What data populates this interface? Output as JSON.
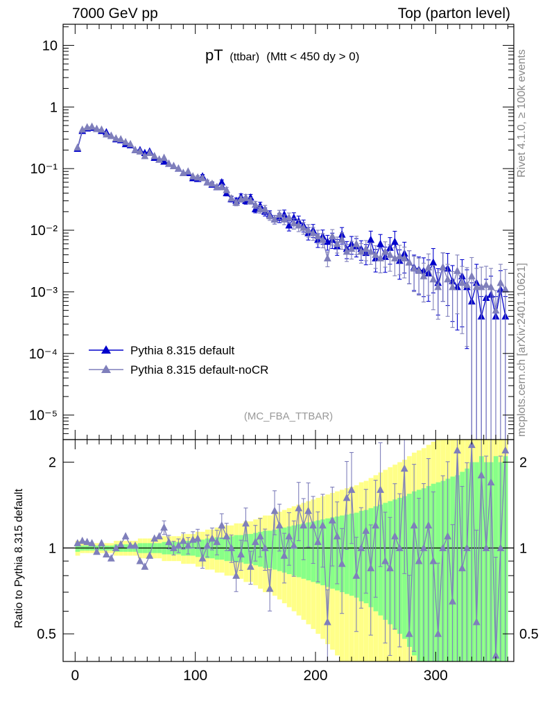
{
  "header": {
    "left": "7000 GeV pp",
    "right": "Top (parton level)"
  },
  "side": {
    "rivet": "Rivet 4.1.0, ≥ 100k events",
    "mcplots": "mcplots.cern.ch [arXiv:2401.10621]"
  },
  "colors": {
    "default": "#0000cc",
    "nocr": "#7f7fbb",
    "band_yellow": "#ffff88",
    "band_green": "#88ff88"
  },
  "chart_data": [
    {
      "type": "line",
      "panel": "main",
      "title_main": "pT",
      "title_sub": "(ttbar)",
      "title_cut": "(Mtt < 450 dy > 0)",
      "analysis_tag": "(MC_FBA_TTBAR)",
      "yscale": "log",
      "xlim": [
        -10,
        365
      ],
      "ylim": [
        4e-06,
        22
      ],
      "yticks": [
        {
          "v": 10,
          "label": "10"
        },
        {
          "v": 1,
          "label": "1"
        },
        {
          "v": 0.1,
          "label": "10⁻¹"
        },
        {
          "v": 0.01,
          "label": "10⁻²"
        },
        {
          "v": 0.001,
          "label": "10⁻³"
        },
        {
          "v": 0.0001,
          "label": "10⁻⁴"
        },
        {
          "v": 1e-05,
          "label": "10⁻⁵"
        }
      ],
      "legend_position": "lower-left",
      "bin_width": 3.6,
      "series": [
        {
          "name": "Pythia 8.315 default",
          "marker": "triangle",
          "x": [
            2,
            6,
            10,
            14,
            18,
            22,
            26,
            30,
            34,
            38,
            42,
            46,
            50,
            54,
            58,
            62,
            66,
            70,
            74,
            78,
            82,
            86,
            90,
            94,
            98,
            102,
            106,
            110,
            114,
            118,
            122,
            126,
            130,
            134,
            138,
            142,
            146,
            150,
            154,
            158,
            162,
            166,
            170,
            174,
            178,
            182,
            186,
            190,
            194,
            198,
            202,
            206,
            210,
            214,
            218,
            222,
            226,
            230,
            234,
            238,
            242,
            246,
            250,
            254,
            258,
            262,
            266,
            270,
            274,
            278,
            282,
            286,
            290,
            294,
            298,
            302,
            306,
            310,
            314,
            318,
            322,
            326,
            330,
            334,
            338,
            342,
            346,
            350,
            354,
            358
          ],
          "y": [
            0.21,
            0.41,
            0.45,
            0.46,
            0.44,
            0.41,
            0.39,
            0.34,
            0.3,
            0.29,
            0.25,
            0.24,
            0.2,
            0.2,
            0.18,
            0.19,
            0.15,
            0.14,
            0.13,
            0.12,
            0.11,
            0.1,
            0.085,
            0.085,
            0.07,
            0.068,
            0.075,
            0.06,
            0.055,
            0.05,
            0.06,
            0.04,
            0.032,
            0.03,
            0.035,
            0.03,
            0.034,
            0.022,
            0.025,
            0.02,
            0.018,
            0.015,
            0.016,
            0.018,
            0.012,
            0.016,
            0.014,
            0.012,
            0.009,
            0.01,
            0.007,
            0.008,
            0.0065,
            0.007,
            0.0055,
            0.0085,
            0.005,
            0.006,
            0.0055,
            0.005,
            0.0043,
            0.007,
            0.0035,
            0.006,
            0.0037,
            0.0052,
            0.0065,
            0.0032,
            0.0042,
            0.003,
            0.0025,
            0.0023,
            0.0022,
            0.002,
            0.003,
            0.0014,
            0.0025,
            0.0024,
            0.0015,
            0.0012,
            0.0018,
            0.0012,
            0.0007,
            0.0014,
            0.0004,
            0.0008,
            0.0009,
            0.0004,
            0.0011,
            0.0004
          ],
          "err_rel": [
            0.03,
            0.02,
            0.02,
            0.02,
            0.02,
            0.02,
            0.02,
            0.02,
            0.03,
            0.03,
            0.03,
            0.03,
            0.03,
            0.04,
            0.04,
            0.04,
            0.04,
            0.04,
            0.05,
            0.05,
            0.05,
            0.05,
            0.06,
            0.06,
            0.06,
            0.07,
            0.07,
            0.08,
            0.08,
            0.09,
            0.09,
            0.1,
            0.1,
            0.11,
            0.11,
            0.12,
            0.12,
            0.13,
            0.14,
            0.15,
            0.15,
            0.16,
            0.17,
            0.18,
            0.19,
            0.2,
            0.21,
            0.22,
            0.23,
            0.24,
            0.25,
            0.26,
            0.27,
            0.28,
            0.29,
            0.3,
            0.31,
            0.32,
            0.33,
            0.35,
            0.36,
            0.38,
            0.4,
            0.42,
            0.44,
            0.46,
            0.48,
            0.5,
            0.52,
            0.55,
            0.58,
            0.6,
            0.62,
            0.65,
            0.68,
            0.7,
            0.72,
            0.75,
            0.78,
            0.8,
            0.85,
            0.9,
            1.0,
            1.0,
            1.1,
            1.0,
            1.0,
            1.1,
            1.0,
            1.1
          ]
        },
        {
          "name": "Pythia 8.315 default-noCR",
          "marker": "triangle",
          "x": [
            2,
            6,
            10,
            14,
            18,
            22,
            26,
            30,
            34,
            38,
            42,
            46,
            50,
            54,
            58,
            62,
            66,
            70,
            74,
            78,
            82,
            86,
            90,
            94,
            98,
            102,
            106,
            110,
            114,
            118,
            122,
            126,
            130,
            134,
            138,
            142,
            146,
            150,
            154,
            158,
            162,
            166,
            170,
            174,
            178,
            182,
            186,
            190,
            194,
            198,
            202,
            206,
            210,
            214,
            218,
            222,
            226,
            230,
            234,
            238,
            242,
            246,
            250,
            254,
            258,
            262,
            266,
            270,
            274,
            278,
            282,
            286,
            290,
            294,
            298,
            302,
            306,
            310,
            314,
            318,
            322,
            326,
            330,
            334,
            338,
            342,
            346,
            350,
            354,
            358
          ],
          "y": [
            0.22,
            0.43,
            0.47,
            0.48,
            0.44,
            0.43,
            0.36,
            0.34,
            0.31,
            0.3,
            0.27,
            0.25,
            0.2,
            0.19,
            0.16,
            0.18,
            0.16,
            0.14,
            0.15,
            0.12,
            0.11,
            0.1,
            0.085,
            0.09,
            0.075,
            0.072,
            0.07,
            0.06,
            0.057,
            0.05,
            0.05,
            0.045,
            0.033,
            0.028,
            0.032,
            0.034,
            0.03,
            0.026,
            0.022,
            0.022,
            0.017,
            0.015,
            0.018,
            0.015,
            0.016,
            0.013,
            0.012,
            0.011,
            0.01,
            0.009,
            0.008,
            0.007,
            0.0035,
            0.008,
            0.006,
            0.007,
            0.0045,
            0.005,
            0.006,
            0.0045,
            0.005,
            0.0045,
            0.004,
            0.0035,
            0.0045,
            0.004,
            0.0035,
            0.0038,
            0.0035,
            0.003,
            0.0024,
            0.0022,
            0.0018,
            0.0025,
            0.0016,
            0.0012,
            0.0025,
            0.0016,
            0.0012,
            0.0022,
            0.0014,
            0.0013,
            0.0018,
            0.0012,
            0.0012,
            0.0013,
            0.0012,
            0.0005,
            0.0014,
            0.0011
          ],
          "err_rel": [
            0.03,
            0.02,
            0.02,
            0.02,
            0.02,
            0.02,
            0.02,
            0.02,
            0.03,
            0.03,
            0.03,
            0.03,
            0.03,
            0.04,
            0.04,
            0.04,
            0.04,
            0.04,
            0.05,
            0.05,
            0.05,
            0.05,
            0.06,
            0.06,
            0.06,
            0.07,
            0.07,
            0.08,
            0.08,
            0.09,
            0.09,
            0.1,
            0.1,
            0.11,
            0.11,
            0.12,
            0.12,
            0.13,
            0.14,
            0.15,
            0.15,
            0.16,
            0.17,
            0.18,
            0.19,
            0.2,
            0.21,
            0.22,
            0.23,
            0.24,
            0.25,
            0.26,
            0.27,
            0.28,
            0.29,
            0.3,
            0.31,
            0.32,
            0.33,
            0.35,
            0.36,
            0.38,
            0.4,
            0.42,
            0.44,
            0.46,
            0.48,
            0.5,
            0.52,
            0.55,
            0.58,
            0.6,
            0.62,
            0.65,
            0.68,
            0.7,
            0.72,
            0.75,
            0.78,
            0.8,
            0.85,
            0.9,
            1.0,
            1.0,
            1.1,
            1.0,
            1.0,
            1.1,
            1.0,
            1.1
          ]
        }
      ]
    },
    {
      "type": "line",
      "panel": "ratio",
      "ylabel": "Ratio to Pythia 8.315 default",
      "yscale": "log",
      "ylim": [
        0.4,
        2.4
      ],
      "yticks": [
        {
          "v": 2,
          "label": "2"
        },
        {
          "v": 1,
          "label": "1"
        },
        {
          "v": 0.5,
          "label": "0.5"
        }
      ],
      "xlim": [
        -10,
        365
      ],
      "xticks": [
        {
          "v": 0,
          "label": "0"
        },
        {
          "v": 100,
          "label": "100"
        },
        {
          "v": 200,
          "label": "200"
        },
        {
          "v": 300,
          "label": "300"
        }
      ],
      "reference_line": 1,
      "bands": [
        {
          "name": "stat 2 sigma",
          "color": "#ffff88",
          "source": "default err_rel x2"
        },
        {
          "name": "stat 1 sigma",
          "color": "#88ff88",
          "source": "default err_rel x1"
        }
      ],
      "series": [
        {
          "name": "Pythia 8.315 default-noCR / Pythia 8.315 default",
          "x": [
            2,
            6,
            10,
            14,
            18,
            22,
            26,
            30,
            34,
            38,
            42,
            46,
            50,
            54,
            58,
            62,
            66,
            70,
            74,
            78,
            82,
            86,
            90,
            94,
            98,
            102,
            106,
            110,
            114,
            118,
            122,
            126,
            130,
            134,
            138,
            142,
            146,
            150,
            154,
            158,
            162,
            166,
            170,
            174,
            178,
            182,
            186,
            190,
            194,
            198,
            202,
            206,
            210,
            214,
            218,
            222,
            226,
            230,
            234,
            238,
            242,
            246,
            250,
            254,
            258,
            262,
            266,
            270,
            274,
            278,
            282,
            286,
            290,
            294,
            298,
            302,
            306,
            310,
            314,
            318,
            322,
            326,
            330,
            334,
            338,
            342,
            346,
            350,
            354,
            358
          ],
          "y": [
            1.04,
            1.06,
            1.05,
            1.04,
            0.97,
            1.04,
            0.95,
            0.92,
            1.0,
            1.03,
            1.1,
            1.02,
            1.02,
            0.9,
            0.86,
            0.94,
            1.08,
            1.1,
            1.18,
            1.05,
            1.0,
            1.02,
            1.06,
            1.02,
            1.07,
            1.08,
            0.92,
            1.02,
            1.08,
            1.05,
            1.2,
            1.1,
            1.0,
            0.8,
            0.95,
            1.22,
            0.86,
            1.05,
            1.1,
            1.0,
            0.72,
            1.35,
            1.2,
            0.94,
            1.1,
            1.02,
            1.38,
            1.2,
            1.35,
            1.2,
            1.05,
            1.2,
            0.55,
            1.25,
            1.1,
            0.88,
            1.5,
            1.6,
            0.8,
            1.0,
            1.15,
            0.85,
            1.2,
            1.6,
            0.9,
            0.85,
            1.1,
            1.0,
            1.9,
            0.5,
            1.2,
            0.9,
            1.0,
            1.2,
            0.9,
            0.5,
            1.0,
            1.1,
            0.65,
            2.2,
            0.85,
            1.0,
            2.3,
            0.55,
            1.8,
            1.0,
            1.7,
            0.42,
            1.0,
            2.2
          ]
        }
      ]
    }
  ]
}
